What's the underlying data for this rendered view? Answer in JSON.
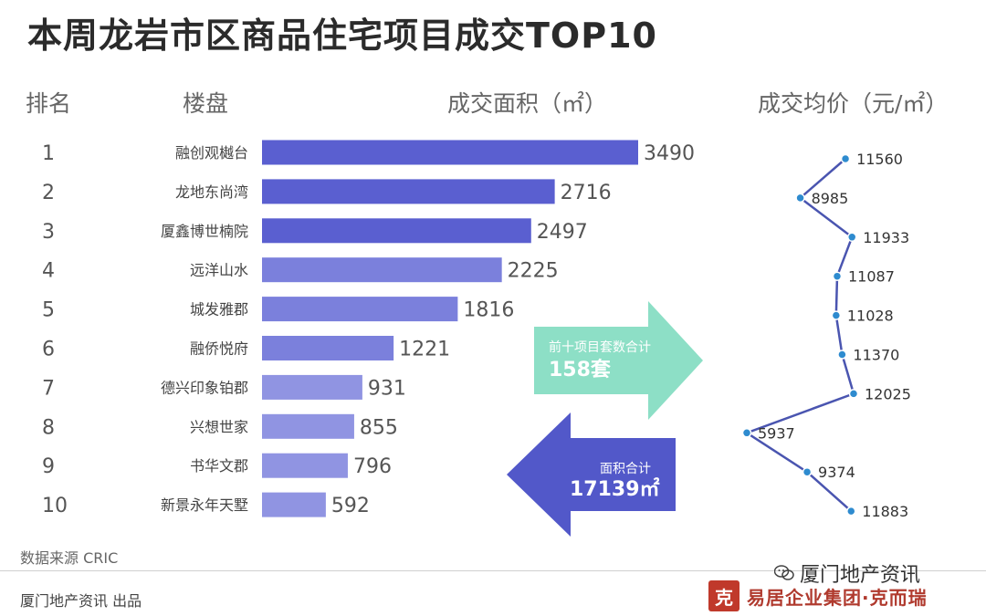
{
  "title": "本周龙岩市区商品住宅项目成交TOP10",
  "headers": {
    "rank": "排名",
    "project": "楼盘",
    "area": "成交面积（㎡）",
    "price": "成交均价（元/㎡）"
  },
  "chart_data": {
    "type": "bar",
    "categories": [
      "融创观樾台",
      "龙地东尚湾",
      "厦鑫博世楠院",
      "远洋山水",
      "城发雅郡",
      "融侨悦府",
      "德兴印象铂郡",
      "兴想世家",
      "书华文郡",
      "新景永年天墅"
    ],
    "ranks": [
      "1",
      "2",
      "3",
      "4",
      "5",
      "6",
      "7",
      "8",
      "9",
      "10"
    ],
    "series": [
      {
        "name": "成交面积（㎡）",
        "values": [
          3490,
          2716,
          2497,
          2225,
          1816,
          1221,
          931,
          855,
          796,
          592
        ]
      },
      {
        "name": "成交均价（元/㎡）",
        "values": [
          11560,
          8985,
          11933,
          11087,
          11028,
          11370,
          12025,
          5937,
          9374,
          11883
        ]
      }
    ],
    "price_chart_type": "line",
    "bar_colors": [
      "#5a5fd0",
      "#5a5fd0",
      "#5a5fd0",
      "#7b80dc",
      "#7b80dc",
      "#7b80dc",
      "#9094e2",
      "#9094e2",
      "#9094e2",
      "#9094e2"
    ],
    "line_color": "#4a55b0",
    "point_color": "#2e8bcf"
  },
  "summary": {
    "units_label": "前十项目套数合计",
    "units_value": "158套",
    "area_label": "面积合计",
    "area_value": "17139㎡"
  },
  "colors": {
    "green_arrow": "#8ddfc6",
    "blue_arrow": "#5258c9"
  },
  "footer": {
    "source": "数据来源  CRIC",
    "producer": "厦门地产资讯  出品",
    "wechat": "厦门地产资讯",
    "brand_text": "易居企业集团·克而瑞",
    "brand_logo": "克"
  },
  "icons": {
    "wechat": "wechat-icon"
  }
}
